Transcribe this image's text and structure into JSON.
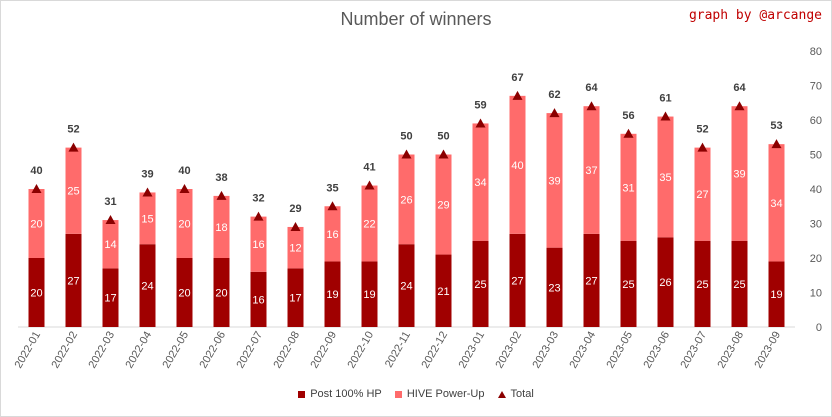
{
  "title": "Number of winners",
  "credit": "graph by @arcange",
  "chart_data": {
    "type": "bar",
    "stacked": true,
    "categories": [
      "2022-01",
      "2022-02",
      "2022-03",
      "2022-04",
      "2022-05",
      "2022-06",
      "2022-07",
      "2022-08",
      "2022-09",
      "2022-10",
      "2022-11",
      "2022-12",
      "2023-01",
      "2023-02",
      "2023-03",
      "2023-04",
      "2023-05",
      "2023-06",
      "2023-07",
      "2023-08",
      "2023-09"
    ],
    "series": [
      {
        "name": "Post 100% HP",
        "color": "#a00000",
        "values": [
          20,
          27,
          17,
          24,
          20,
          20,
          16,
          17,
          19,
          19,
          24,
          21,
          25,
          27,
          23,
          27,
          25,
          26,
          25,
          25,
          19
        ]
      },
      {
        "name": "HIVE Power-Up",
        "color": "#ff6b6b",
        "values": [
          20,
          25,
          14,
          15,
          20,
          18,
          16,
          12,
          16,
          22,
          26,
          29,
          34,
          40,
          39,
          37,
          31,
          35,
          27,
          39,
          34
        ]
      },
      {
        "name": "Total",
        "color": "#8b0000",
        "marker": "triangle",
        "values": [
          40,
          52,
          31,
          39,
          40,
          38,
          32,
          29,
          35,
          41,
          50,
          50,
          59,
          67,
          62,
          64,
          56,
          61,
          52,
          64,
          53
        ]
      }
    ],
    "ylim": [
      0,
      80
    ],
    "yticks": [
      0,
      10,
      20,
      30,
      40,
      50,
      60,
      70,
      80
    ],
    "y_axis_side": "right",
    "grid": false,
    "legend": "bottom"
  }
}
